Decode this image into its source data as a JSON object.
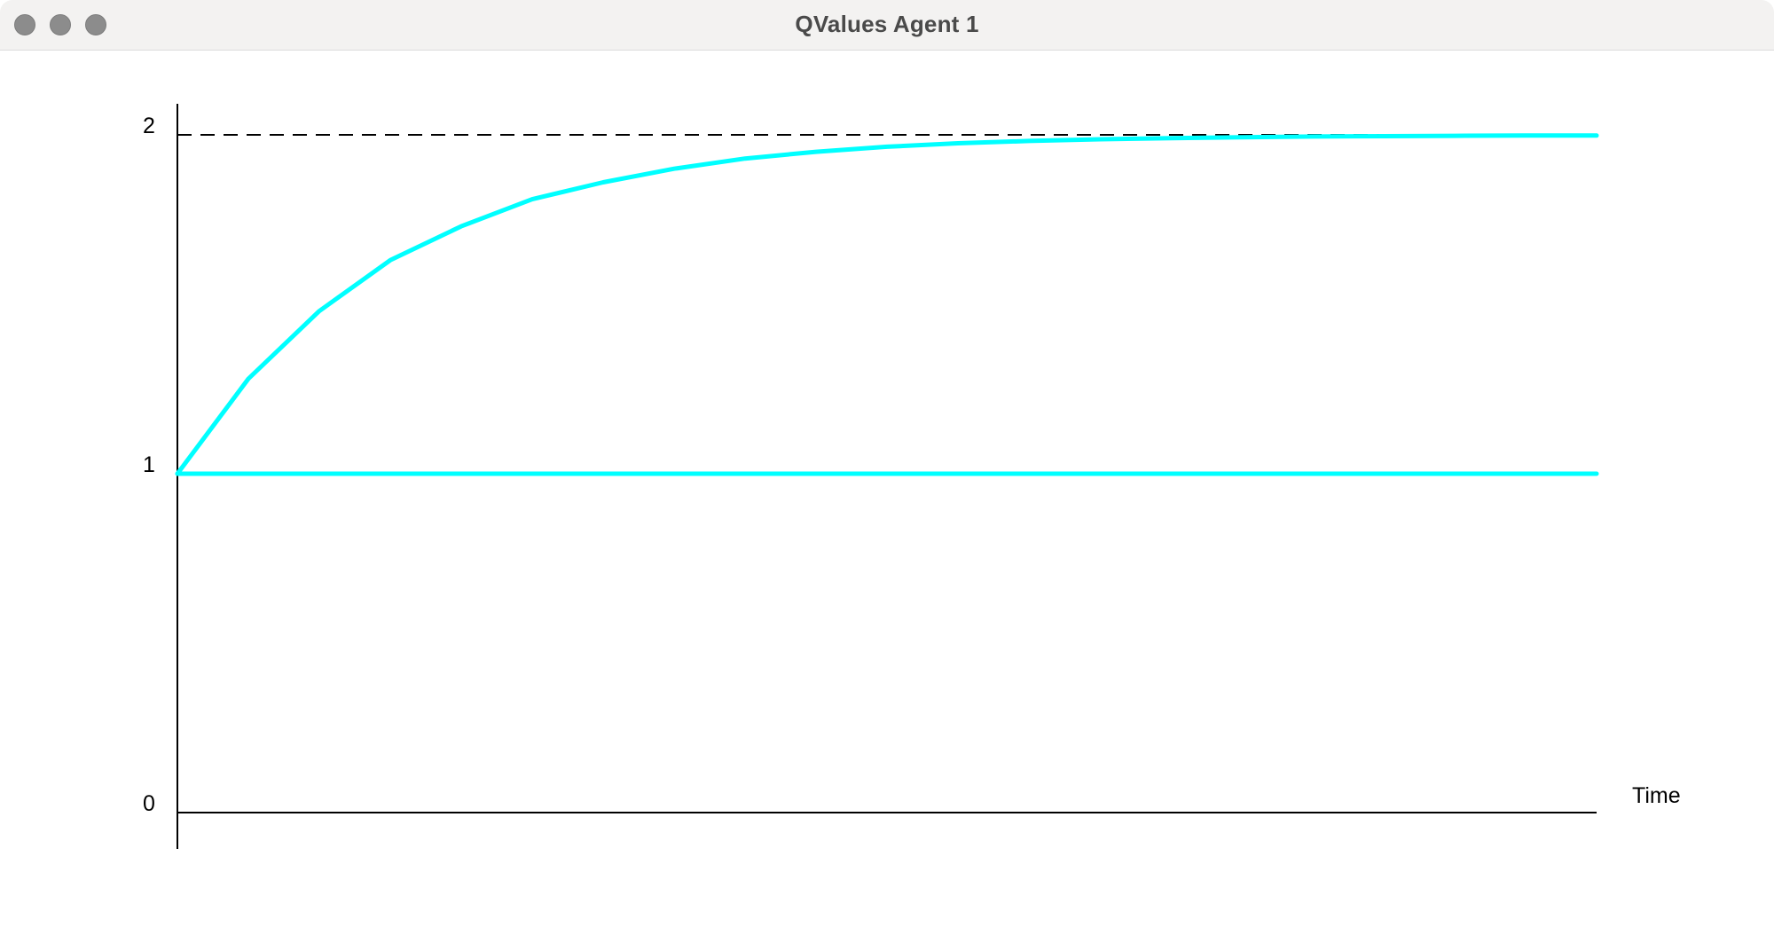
{
  "window": {
    "title": "QValues Agent 1"
  },
  "colors": {
    "series": "#00ffff",
    "axis": "#000000",
    "titlebar": "#f3f2f1"
  },
  "icons": [
    "close-icon",
    "minimize-icon",
    "zoom-icon"
  ],
  "chart_data": {
    "type": "line",
    "title": "",
    "xlabel": "Time",
    "ylabel": "",
    "ylim": [
      0,
      2
    ],
    "yticks": [
      "0",
      "1",
      "2"
    ],
    "reference_line": {
      "y": 2,
      "style": "dashed"
    },
    "grid": false,
    "legend": "none",
    "series": [
      {
        "x": [
          0,
          5,
          10,
          15,
          20,
          25,
          30,
          35,
          40,
          45,
          50,
          55,
          60,
          65,
          70,
          75,
          80,
          85,
          90,
          95,
          100
        ],
        "values": [
          1.0,
          1.28,
          1.48,
          1.63,
          1.73,
          1.81,
          1.86,
          1.9,
          1.93,
          1.95,
          1.965,
          1.975,
          1.982,
          1.987,
          1.99,
          1.993,
          1.995,
          1.996,
          1.997,
          1.998,
          1.998
        ]
      },
      {
        "x": [
          0,
          100
        ],
        "values": [
          1.0,
          1.0
        ]
      }
    ]
  }
}
